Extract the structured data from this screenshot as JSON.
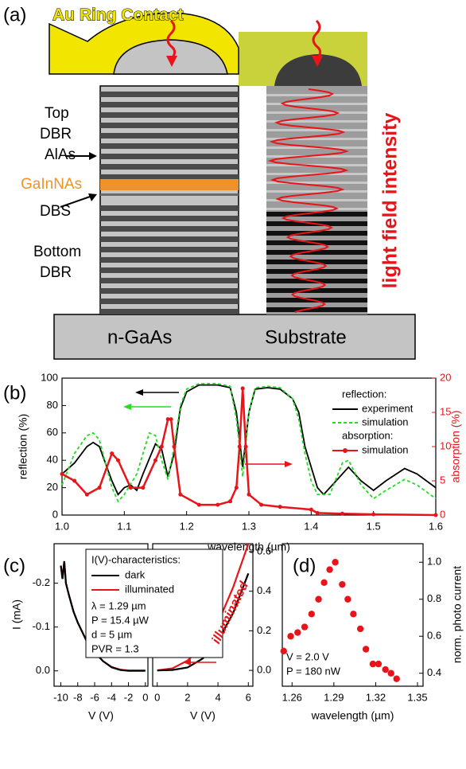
{
  "figure_a": {
    "panel_label": "(a)",
    "contact": "Au Ring Contact",
    "top_dbr": [
      "Top",
      "DBR"
    ],
    "alas": "AlAs",
    "active": "GaInNAs",
    "dbs": "DBS",
    "bottom_dbr": [
      "Bottom",
      "DBR"
    ],
    "base": "n-GaAs",
    "substrate": "Substrate",
    "intensity": "light field intensity"
  },
  "chart_data": [
    {
      "type": "line",
      "panel_label": "(b)",
      "xlabel": "wavelength (µm)",
      "ylabel": "reflection (%)",
      "y2label": "absorption (%)",
      "xlim": [
        1.0,
        1.6
      ],
      "xticks": [
        {
          "value": 1.0,
          "label": "1.0"
        },
        1.1,
        1.2,
        1.3,
        1.4,
        1.5,
        1.6
      ],
      "ylim": [
        0,
        100
      ],
      "yticks": [
        0,
        20,
        40,
        60,
        80,
        100
      ],
      "y2lim": [
        0,
        20
      ],
      "y2ticks": [
        0,
        5,
        10,
        15,
        20
      ],
      "y2color": "#e8141a",
      "legend_groups": [
        "reflection:",
        "absorption:"
      ],
      "series": [
        {
          "name": "experiment",
          "color": "#000000",
          "dashed": false,
          "markers": false,
          "x": [
            1.0,
            1.02,
            1.04,
            1.05,
            1.06,
            1.08,
            1.09,
            1.1,
            1.11,
            1.12,
            1.13,
            1.15,
            1.16,
            1.17,
            1.18,
            1.19,
            1.2,
            1.22,
            1.25,
            1.27,
            1.28,
            1.29,
            1.3,
            1.31,
            1.33,
            1.35,
            1.37,
            1.38,
            1.39,
            1.41,
            1.42,
            1.44,
            1.46,
            1.48,
            1.5,
            1.52,
            1.55,
            1.57,
            1.6
          ],
          "values": [
            30,
            38,
            50,
            53,
            50,
            25,
            15,
            20,
            22,
            18,
            30,
            52,
            48,
            28,
            45,
            78,
            90,
            95,
            95,
            93,
            75,
            35,
            75,
            92,
            93,
            92,
            85,
            75,
            50,
            20,
            15,
            25,
            35,
            25,
            18,
            25,
            34,
            30,
            20
          ]
        },
        {
          "name": "simulation",
          "color": "#22dd22",
          "dashed": true,
          "markers": false,
          "x": [
            1.0,
            1.02,
            1.04,
            1.05,
            1.06,
            1.08,
            1.09,
            1.1,
            1.12,
            1.14,
            1.15,
            1.16,
            1.17,
            1.18,
            1.19,
            1.2,
            1.22,
            1.25,
            1.27,
            1.28,
            1.29,
            1.3,
            1.31,
            1.33,
            1.35,
            1.37,
            1.38,
            1.39,
            1.4,
            1.41,
            1.43,
            1.45,
            1.46,
            1.48,
            1.5,
            1.52,
            1.55,
            1.57,
            1.6
          ],
          "values": [
            22,
            45,
            58,
            60,
            55,
            20,
            10,
            15,
            30,
            60,
            58,
            40,
            26,
            50,
            80,
            92,
            96,
            96,
            94,
            70,
            28,
            75,
            93,
            94,
            93,
            85,
            70,
            45,
            25,
            15,
            15,
            38,
            40,
            22,
            12,
            18,
            26,
            22,
            12
          ]
        },
        {
          "name": "simulation",
          "color": "#e8141a",
          "dashed": false,
          "markers": true,
          "axis": "y2",
          "x": [
            1.0,
            1.02,
            1.04,
            1.06,
            1.08,
            1.09,
            1.11,
            1.13,
            1.15,
            1.16,
            1.17,
            1.175,
            1.18,
            1.19,
            1.22,
            1.25,
            1.27,
            1.28,
            1.285,
            1.29,
            1.295,
            1.3,
            1.32,
            1.35,
            1.4,
            1.41,
            1.45,
            1.5,
            1.6
          ],
          "values": [
            6,
            5,
            3,
            4,
            9,
            8,
            4,
            4,
            8,
            10,
            14,
            14,
            10,
            3,
            1.5,
            1.5,
            2,
            4,
            10,
            18.5,
            10,
            3,
            1.5,
            1.2,
            0.8,
            0.3,
            0.2,
            0.1,
            0
          ]
        }
      ]
    },
    {
      "type": "iv",
      "panel_label": "(c)",
      "ylabel": "I (mA)",
      "legend_title": "I(V)-characteristics:",
      "notes": [
        "λ = 1.29 µm",
        "P = 15.4 µW",
        "d = 5 µm",
        "PVR = 1.3"
      ],
      "panels": [
        {
          "xlabel": "V (V)",
          "xlim": [
            -10.8,
            0.3
          ],
          "xticks": [
            -10,
            -8,
            -6,
            -4,
            -2,
            0
          ],
          "ylim": [
            0.035,
            -0.29
          ],
          "yticks": [
            {
              "value": 0,
              "label": "0.0"
            },
            -0.1,
            -0.2
          ]
        },
        {
          "xlabel": "V (V)",
          "xlim": [
            -0.3,
            6.3
          ],
          "xticks": [
            0,
            2,
            4,
            6
          ],
          "ylim": [
            -0.08,
            0.64
          ],
          "yticks": [
            {
              "value": 0,
              "label": "0.0"
            },
            0.2,
            0.4,
            0.6
          ]
        }
      ],
      "series": [
        {
          "name": "dark",
          "color": "#000000",
          "panels": [
            {
              "x": [
                -10,
                -9.8,
                -9.6,
                -9.4,
                -9,
                -8.5,
                -8,
                -7,
                -6,
                -5,
                -4,
                -3,
                -2,
                -1,
                0
              ],
              "values": [
                -0.24,
                -0.21,
                -0.25,
                -0.2,
                -0.17,
                -0.135,
                -0.11,
                -0.07,
                -0.042,
                -0.022,
                -0.008,
                -0.002,
                0,
                0,
                0
              ]
            },
            {
              "x": [
                0,
                1,
                2,
                3,
                4,
                5,
                6
              ],
              "values": [
                0,
                0.002,
                0.015,
                0.06,
                0.15,
                0.29,
                0.49
              ]
            }
          ]
        },
        {
          "name": "illuminated",
          "color": "#e8141a",
          "panels": [
            {
              "x": [
                -10,
                -9.8,
                -9.6,
                -9.4,
                -9,
                -8.5,
                -8,
                -7,
                -6,
                -5,
                -4,
                -3,
                -2,
                -1,
                0
              ],
              "values": [
                -0.24,
                -0.21,
                -0.25,
                -0.2,
                -0.17,
                -0.135,
                -0.11,
                -0.07,
                -0.042,
                -0.022,
                -0.009,
                -0.003,
                -0.001,
                -0.001,
                -0.001
              ]
            },
            {
              "x": [
                0,
                1,
                2,
                3,
                4,
                5,
                6
              ],
              "values": [
                0,
                0.01,
                0.05,
                0.12,
                0.24,
                0.42,
                0.64
              ]
            }
          ]
        }
      ]
    },
    {
      "type": "scatter",
      "panel_label": "(d)",
      "xlabel": "wavelength (µm)",
      "ylabel": "norm. photo current",
      "notes": [
        "V = 2.0 V",
        "P = 180 nW"
      ],
      "color": "#e8141a",
      "xlim": [
        1.253,
        1.354
      ],
      "xticks": [
        1.26,
        1.29,
        1.32,
        1.35
      ],
      "ylim": [
        0.33,
        1.1
      ],
      "yticks": [
        0.4,
        0.6,
        0.8,
        {
          "value": 1.0,
          "label": "1.0"
        }
      ],
      "x": [
        1.254,
        1.259,
        1.264,
        1.269,
        1.274,
        1.279,
        1.283,
        1.287,
        1.291,
        1.296,
        1.3,
        1.304,
        1.309,
        1.313,
        1.318,
        1.322,
        1.327,
        1.331,
        1.335
      ],
      "values": [
        0.52,
        0.6,
        0.62,
        0.65,
        0.72,
        0.8,
        0.89,
        0.96,
        1.0,
        0.88,
        0.8,
        0.72,
        0.64,
        0.53,
        0.45,
        0.45,
        0.42,
        0.4,
        0.37
      ]
    }
  ]
}
